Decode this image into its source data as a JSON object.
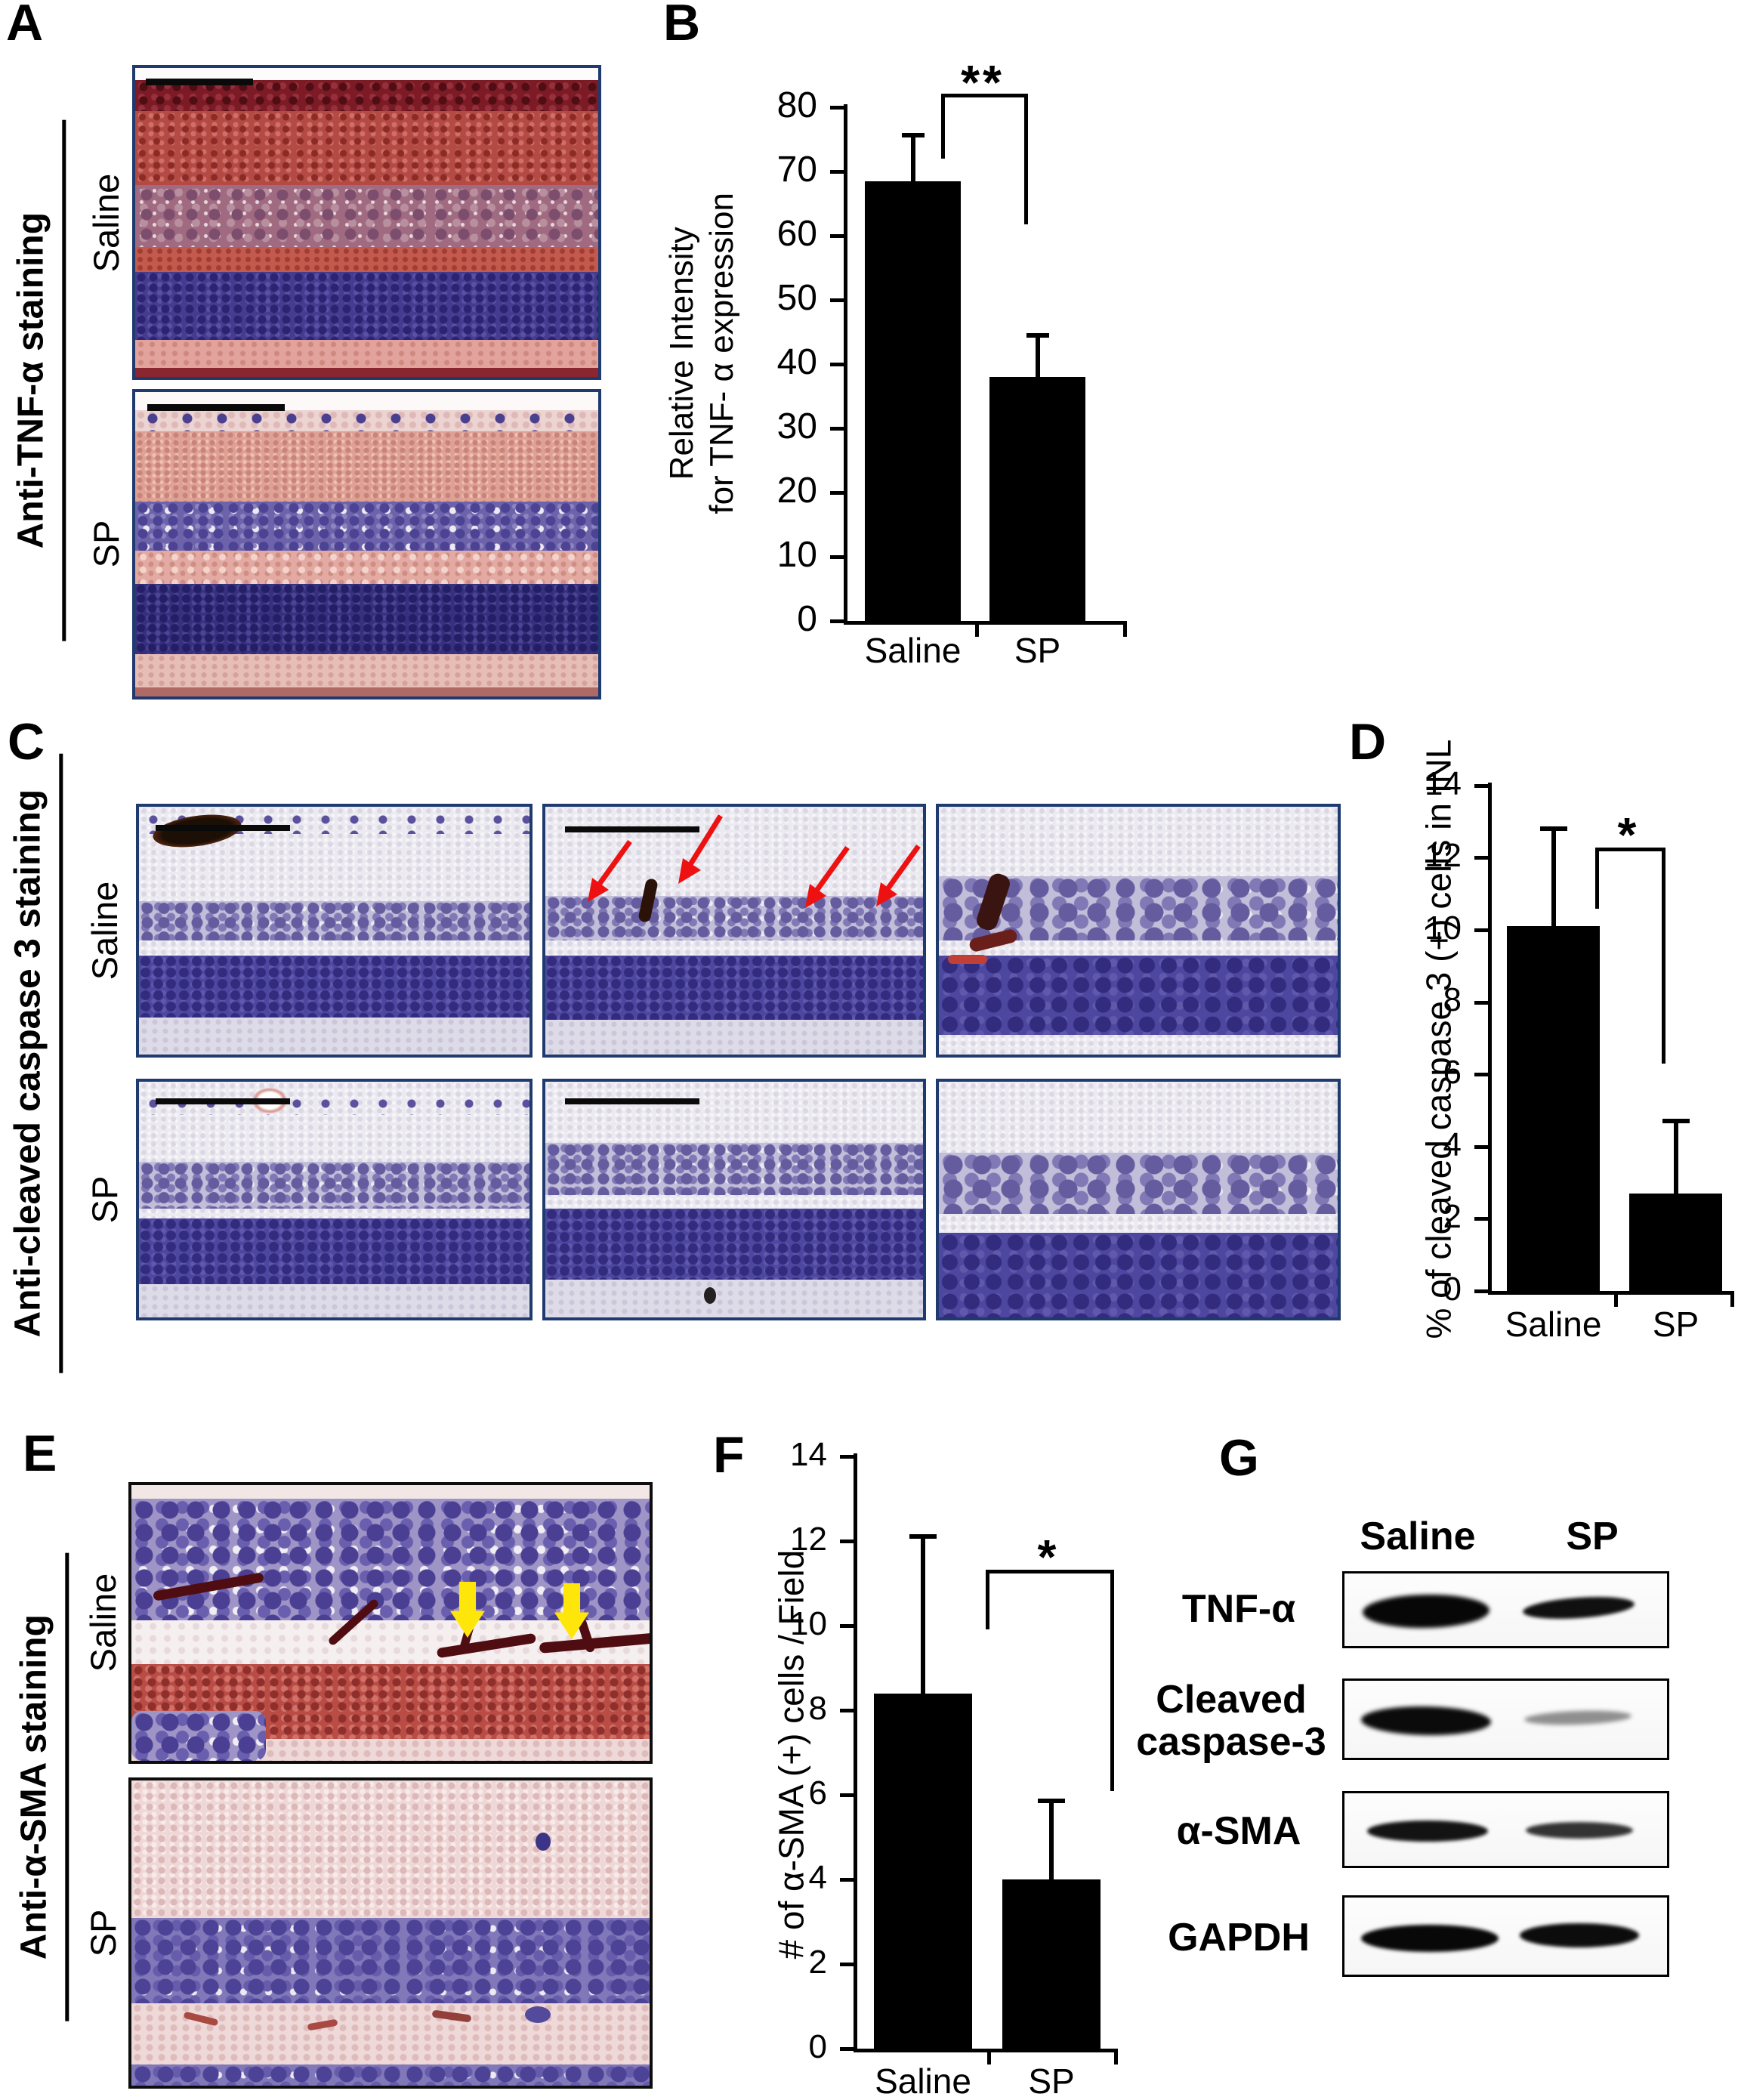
{
  "colors": {
    "image_border_navy": "#1e3a6e",
    "image_border_black": "#0d0d0d",
    "bar_fill": "#000000",
    "red_arrow": "#ee1111",
    "yellow_arrow": "#ffe60a",
    "scale_bar": "#0a0a0a"
  },
  "panels": {
    "a": {
      "letter": "A",
      "stain_label": "Anti-TNF-α staining",
      "rows": [
        {
          "label": "Saline"
        },
        {
          "label": "SP"
        }
      ]
    },
    "b": {
      "letter": "B"
    },
    "c": {
      "letter": "C",
      "stain_label": "Anti-cleaved caspase 3 staining",
      "rows": [
        {
          "label": "Saline"
        },
        {
          "label": "SP"
        }
      ],
      "annotations": "red arrows mark cleaved caspase 3 (+) cells in Saline middle image"
    },
    "d": {
      "letter": "D"
    },
    "e": {
      "letter": "E",
      "stain_label": "Anti-α-SMA staining",
      "rows": [
        {
          "label": "Saline"
        },
        {
          "label": "SP"
        }
      ],
      "annotations": "yellow arrows mark α-SMA (+) vessels in Saline image"
    },
    "f": {
      "letter": "F"
    },
    "g": {
      "letter": "G",
      "col_headers": [
        "Saline",
        "SP"
      ],
      "rows": [
        {
          "label": "TNF-α",
          "label_lines": "TNF-α",
          "bands": {
            "Saline": "strong",
            "SP": "medium"
          }
        },
        {
          "label": "Cleaved caspase-3",
          "label_lines": "Cleaved\ncaspase-3",
          "bands": {
            "Saline": "strong",
            "SP": "faint"
          }
        },
        {
          "label": "α-SMA",
          "label_lines": "α-SMA",
          "bands": {
            "Saline": "strong",
            "SP": "medium"
          }
        },
        {
          "label": "GAPDH",
          "label_lines": "GAPDH",
          "bands": {
            "Saline": "strong",
            "SP": "strong"
          }
        }
      ]
    }
  },
  "chart_data": [
    {
      "panel": "B",
      "type": "bar",
      "categories": [
        "Saline",
        "SP"
      ],
      "values": [
        68.5,
        38
      ],
      "errors": [
        7.1,
        6.5
      ],
      "title": "",
      "xlabel": "",
      "ylabel": "Relative Intensity\nfor TNF- α expression",
      "ylim": [
        0,
        80
      ],
      "ytick_step": 10,
      "significance": "**",
      "bar_color": "#000000",
      "grid": false,
      "legend": "none"
    },
    {
      "panel": "D",
      "type": "bar",
      "categories": [
        "Saline",
        "SP"
      ],
      "values": [
        10.1,
        2.7
      ],
      "errors": [
        2.7,
        2.0
      ],
      "title": "",
      "xlabel": "",
      "ylabel": "% of cleaved caspase 3 (+) cells in INL",
      "ylim": [
        0,
        14
      ],
      "ytick_step": 2,
      "significance": "*",
      "bar_color": "#000000",
      "grid": false,
      "legend": "none"
    },
    {
      "panel": "F",
      "type": "bar",
      "categories": [
        "Saline",
        "SP"
      ],
      "values": [
        8.4,
        4.0
      ],
      "errors": [
        3.7,
        1.85
      ],
      "title": "",
      "xlabel": "",
      "ylabel": "# of α-SMA (+) cells / Field",
      "ylim": [
        0,
        14
      ],
      "ytick_step": 2,
      "significance": "*",
      "bar_color": "#000000",
      "grid": false,
      "legend": "none"
    }
  ]
}
